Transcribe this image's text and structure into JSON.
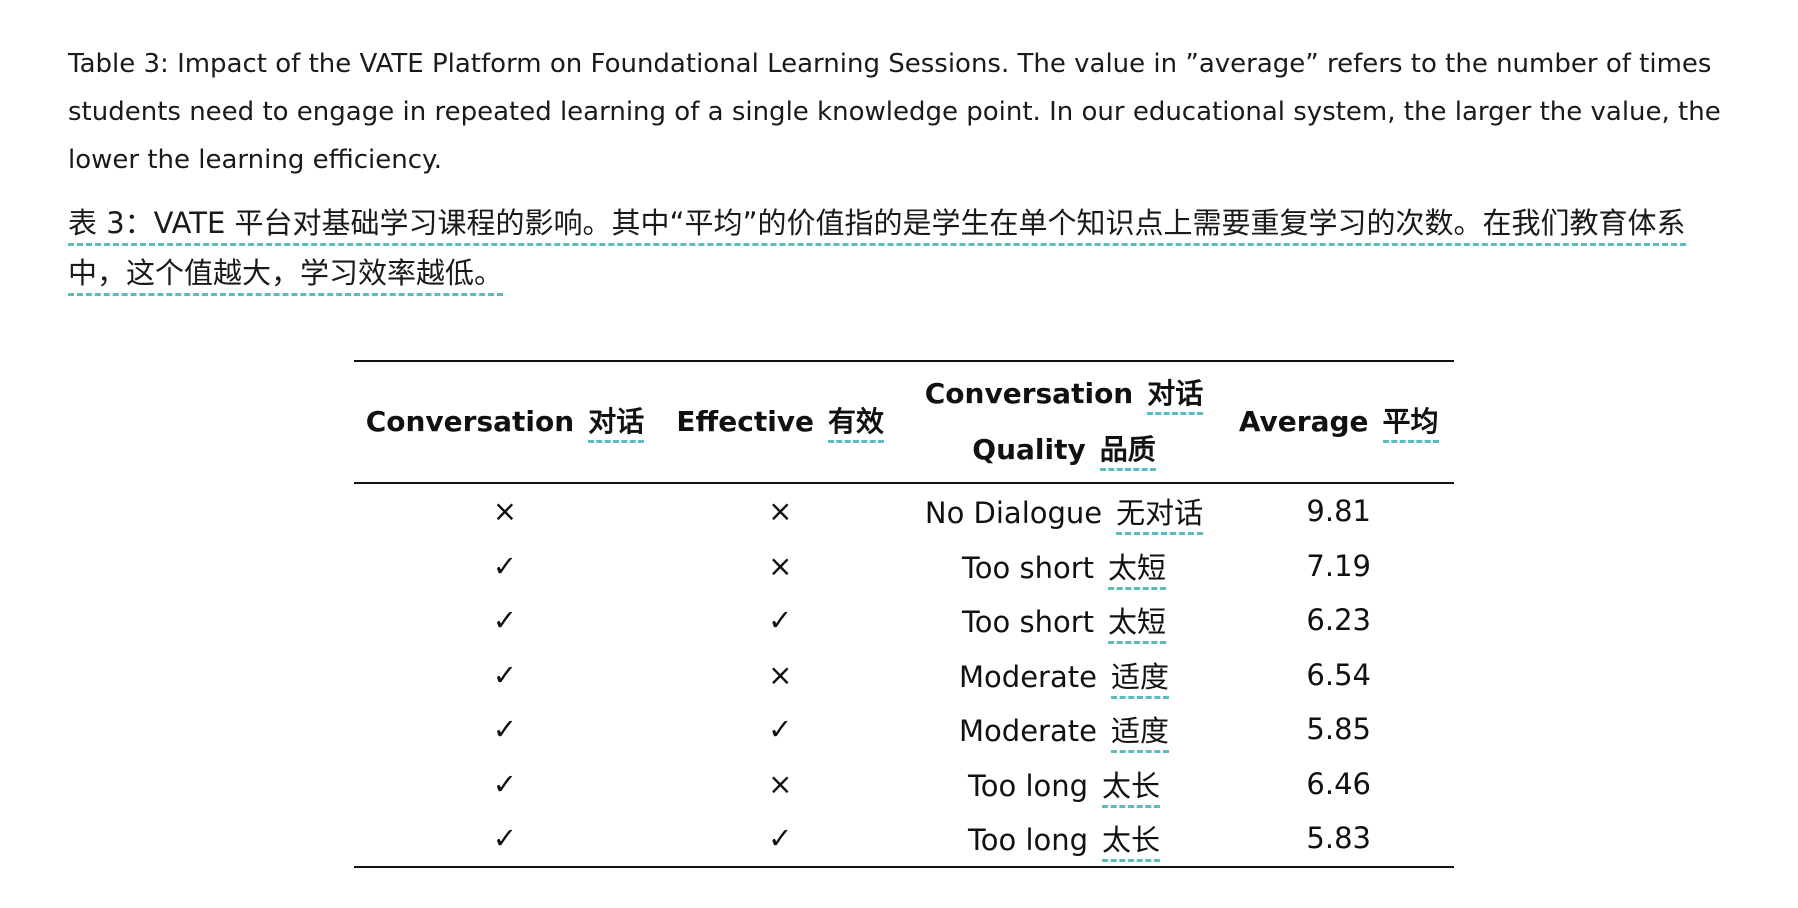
{
  "caption": {
    "english": "Table 3: Impact of the VATE Platform on Foundational Learning Sessions. The value in ”average” refers to the number of times students need to engage in repeated learning of a single knowledge point. In our educational system, the larger the value, the lower the learning efficiency.",
    "chinese": "表 3：VATE 平台对基础学习课程的影响。其中“平均”的价值指的是学生在单个知识点上需要重复学习的次数。在我们教育体系中，这个值越大，学习效率越低。"
  },
  "table": {
    "headers": {
      "conversation_en": "Conversation",
      "conversation_zh": "对话",
      "effective_en": "Effective",
      "effective_zh": "有效",
      "quality_line1_en": "Conversation",
      "quality_line1_zh": "对话",
      "quality_line2_en": "Quality",
      "quality_line2_zh": "品质",
      "average_en": "Average",
      "average_zh": "平均"
    },
    "rows": [
      {
        "conversation": "×",
        "effective": "×",
        "quality_en": "No Dialogue",
        "quality_zh": "无对话",
        "average": "9.81"
      },
      {
        "conversation": "✓",
        "effective": "×",
        "quality_en": "Too short",
        "quality_zh": "太短",
        "average": "7.19"
      },
      {
        "conversation": "✓",
        "effective": "✓",
        "quality_en": "Too short",
        "quality_zh": "太短",
        "average": "6.23"
      },
      {
        "conversation": "✓",
        "effective": "×",
        "quality_en": "Moderate",
        "quality_zh": "适度",
        "average": "6.54"
      },
      {
        "conversation": "✓",
        "effective": "✓",
        "quality_en": "Moderate",
        "quality_zh": "适度",
        "average": "5.85"
      },
      {
        "conversation": "✓",
        "effective": "×",
        "quality_en": "Too long",
        "quality_zh": "太长",
        "average": "6.46"
      },
      {
        "conversation": "✓",
        "effective": "✓",
        "quality_en": "Too long",
        "quality_zh": "太长",
        "average": "5.83"
      }
    ]
  }
}
